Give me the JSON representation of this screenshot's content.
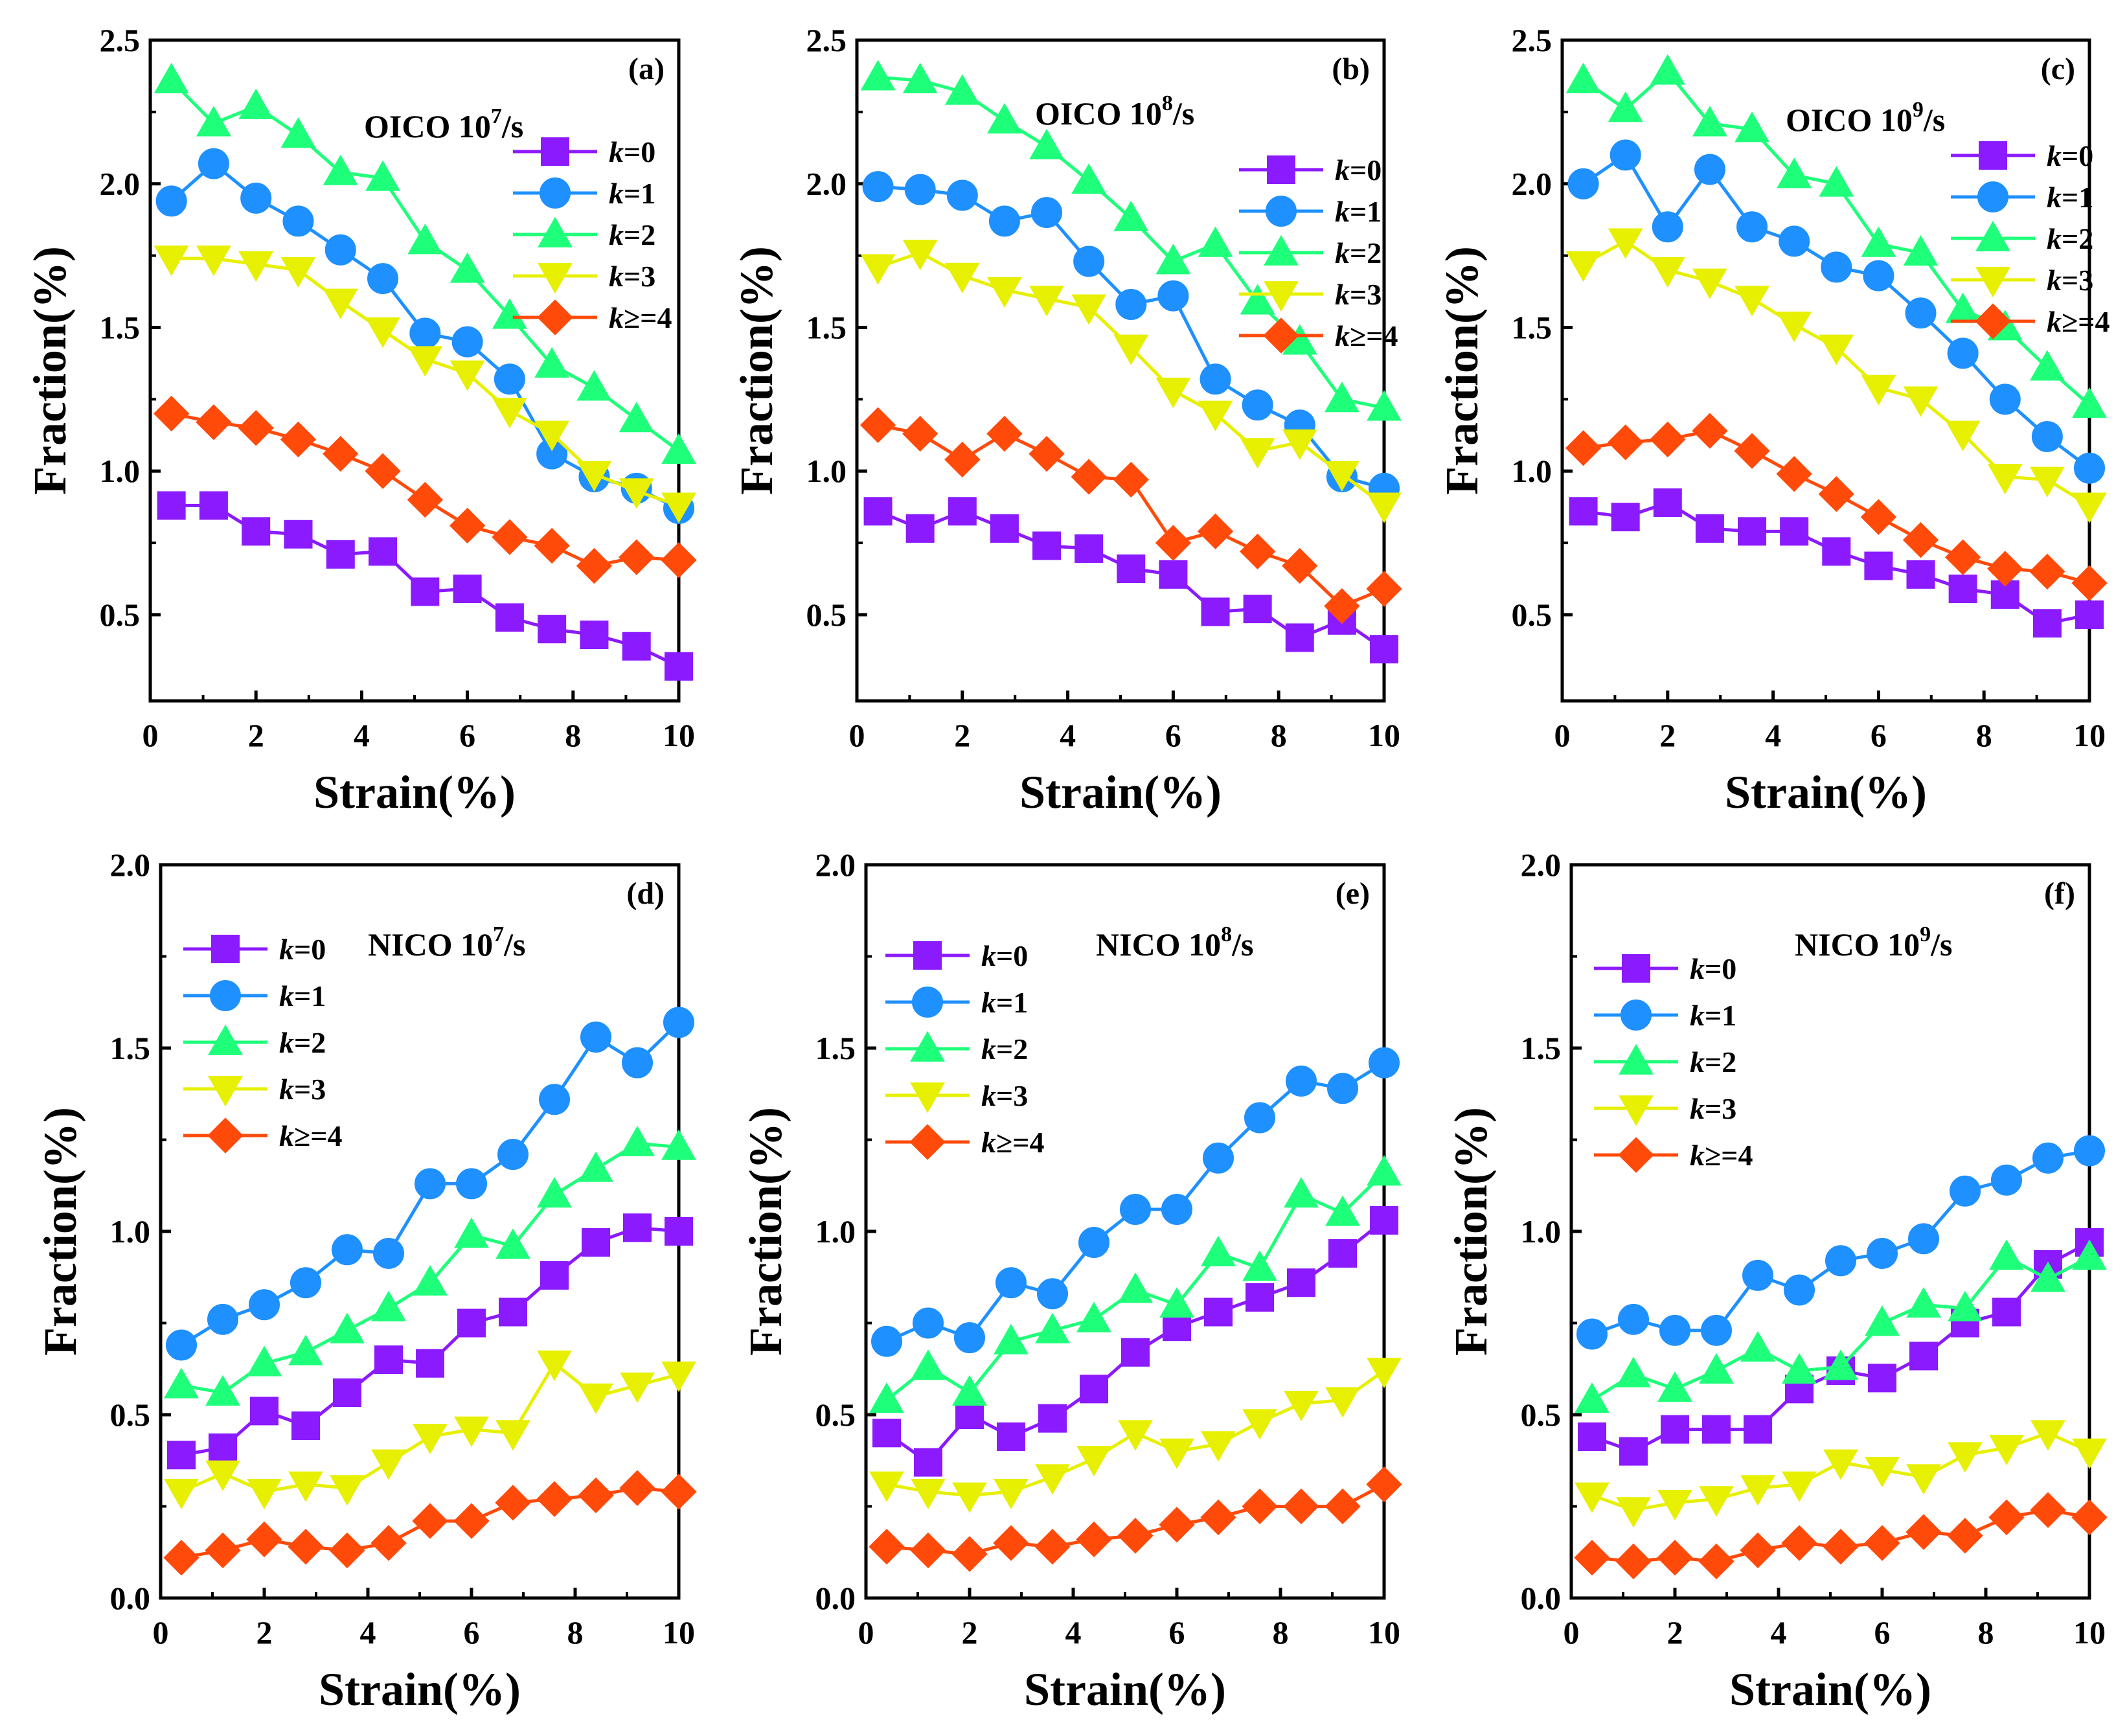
{
  "colors": {
    "k0": "#8B1AFF",
    "k1": "#1E90FF",
    "k2": "#1EFF7A",
    "k3": "#E6F000",
    "k4": "#FF4A0A"
  },
  "legend_labels": [
    {
      "k": "k",
      "rest": "=0",
      "series": "k0"
    },
    {
      "k": "k",
      "rest": "=1",
      "series": "k1"
    },
    {
      "k": "k",
      "rest": "=2",
      "series": "k2"
    },
    {
      "k": "k",
      "rest": "=3",
      "series": "k3"
    },
    {
      "k": "k",
      "rest": "≥=4",
      "series": "k4"
    }
  ],
  "chart_data": [
    {
      "type": "line",
      "panel_label": "(a)",
      "title": "OICO",
      "rate_base": "10",
      "rate_exp": "7",
      "rate_unit": "/s",
      "xlabel": "Strain(%)",
      "ylabel": "Fraction(%)",
      "xlim": [
        0,
        10
      ],
      "ylim": [
        0.2,
        2.5
      ],
      "xticks": [
        0,
        2,
        4,
        6,
        8,
        10
      ],
      "yticks": [
        0.5,
        1.0,
        1.5,
        2.0,
        2.5
      ],
      "ytick_labels": [
        "0.5",
        "1.0",
        "1.5",
        "2.0",
        "2.5"
      ],
      "x": [
        0.4,
        1.2,
        2.0,
        2.8,
        3.6,
        4.4,
        5.2,
        6.0,
        6.8,
        7.6,
        8.4,
        9.2,
        10.0
      ],
      "series": [
        {
          "name": "k=0",
          "marker": "square",
          "values": [
            0.88,
            0.88,
            0.79,
            0.78,
            0.71,
            0.72,
            0.58,
            0.59,
            0.49,
            0.45,
            0.43,
            0.39,
            0.32
          ]
        },
        {
          "name": "k=1",
          "marker": "circle",
          "values": [
            1.94,
            2.07,
            1.95,
            1.87,
            1.77,
            1.67,
            1.48,
            1.45,
            1.32,
            1.06,
            0.98,
            0.94,
            0.87
          ]
        },
        {
          "name": "k=2",
          "marker": "triangle-up",
          "values": [
            2.36,
            2.21,
            2.27,
            2.17,
            2.04,
            2.02,
            1.8,
            1.7,
            1.54,
            1.37,
            1.29,
            1.18,
            1.07
          ]
        },
        {
          "name": "k=3",
          "marker": "triangle-down",
          "values": [
            1.74,
            1.74,
            1.72,
            1.7,
            1.59,
            1.49,
            1.39,
            1.34,
            1.21,
            1.13,
            0.99,
            0.93,
            0.88
          ]
        },
        {
          "name": "k≥=4",
          "marker": "diamond",
          "values": [
            1.2,
            1.17,
            1.15,
            1.11,
            1.06,
            1.0,
            0.9,
            0.81,
            0.77,
            0.74,
            0.67,
            0.7,
            0.69
          ]
        }
      ]
    },
    {
      "type": "line",
      "panel_label": "(b)",
      "title": "OICO",
      "rate_base": "10",
      "rate_exp": "8",
      "rate_unit": "/s",
      "xlabel": "Strain(%)",
      "ylabel": "Fraction(%)",
      "xlim": [
        0,
        10
      ],
      "ylim": [
        0.2,
        2.5
      ],
      "xticks": [
        0,
        2,
        4,
        6,
        8,
        10
      ],
      "yticks": [
        0.5,
        1.0,
        1.5,
        2.0,
        2.5
      ],
      "ytick_labels": [
        "0.5",
        "1.0",
        "1.5",
        "2.0",
        "2.5"
      ],
      "x": [
        0.4,
        1.2,
        2.0,
        2.8,
        3.6,
        4.4,
        5.2,
        6.0,
        6.8,
        7.6,
        8.4,
        9.2,
        10.0
      ],
      "series": [
        {
          "name": "k=0",
          "marker": "square",
          "values": [
            0.86,
            0.8,
            0.86,
            0.8,
            0.74,
            0.73,
            0.66,
            0.64,
            0.51,
            0.52,
            0.42,
            0.48,
            0.38
          ]
        },
        {
          "name": "k=1",
          "marker": "circle",
          "values": [
            1.99,
            1.98,
            1.96,
            1.87,
            1.9,
            1.73,
            1.58,
            1.61,
            1.32,
            1.23,
            1.16,
            0.98,
            0.94
          ]
        },
        {
          "name": "k=2",
          "marker": "triangle-up",
          "values": [
            2.37,
            2.36,
            2.32,
            2.22,
            2.13,
            2.01,
            1.88,
            1.73,
            1.79,
            1.59,
            1.45,
            1.25,
            1.22
          ]
        },
        {
          "name": "k=3",
          "marker": "triangle-down",
          "values": [
            1.71,
            1.76,
            1.68,
            1.63,
            1.6,
            1.57,
            1.43,
            1.28,
            1.2,
            1.07,
            1.1,
            0.99,
            0.88
          ]
        },
        {
          "name": "k≥=4",
          "marker": "diamond",
          "values": [
            1.16,
            1.13,
            1.04,
            1.13,
            1.06,
            0.98,
            0.97,
            0.75,
            0.79,
            0.72,
            0.67,
            0.53,
            0.59
          ]
        }
      ]
    },
    {
      "type": "line",
      "panel_label": "(c)",
      "title": "OICO",
      "rate_base": "10",
      "rate_exp": "9",
      "rate_unit": "/s",
      "xlabel": "Strain(%)",
      "ylabel": "Fraction(%)",
      "xlim": [
        0,
        10
      ],
      "ylim": [
        0.2,
        2.5
      ],
      "xticks": [
        0,
        2,
        4,
        6,
        8,
        10
      ],
      "yticks": [
        0.5,
        1.0,
        1.5,
        2.0,
        2.5
      ],
      "ytick_labels": [
        "0.5",
        "1.0",
        "1.5",
        "2.0",
        "2.5"
      ],
      "x": [
        0.4,
        1.2,
        2.0,
        2.8,
        3.6,
        4.4,
        5.2,
        6.0,
        6.8,
        7.6,
        8.4,
        9.2,
        10.0
      ],
      "series": [
        {
          "name": "k=0",
          "marker": "square",
          "values": [
            0.86,
            0.84,
            0.89,
            0.8,
            0.79,
            0.79,
            0.72,
            0.67,
            0.64,
            0.59,
            0.57,
            0.47,
            0.5
          ]
        },
        {
          "name": "k=1",
          "marker": "circle",
          "values": [
            2.0,
            2.1,
            1.85,
            2.05,
            1.85,
            1.8,
            1.71,
            1.68,
            1.55,
            1.41,
            1.25,
            1.12,
            1.01
          ]
        },
        {
          "name": "k=2",
          "marker": "triangle-up",
          "values": [
            2.36,
            2.26,
            2.39,
            2.21,
            2.19,
            2.03,
            2.0,
            1.79,
            1.76,
            1.56,
            1.5,
            1.36,
            1.23
          ]
        },
        {
          "name": "k=3",
          "marker": "triangle-down",
          "values": [
            1.72,
            1.8,
            1.7,
            1.66,
            1.6,
            1.51,
            1.43,
            1.29,
            1.25,
            1.13,
            0.98,
            0.97,
            0.88
          ]
        },
        {
          "name": "k≥=4",
          "marker": "diamond",
          "values": [
            1.08,
            1.1,
            1.11,
            1.14,
            1.07,
            0.99,
            0.92,
            0.84,
            0.76,
            0.7,
            0.66,
            0.65,
            0.61
          ]
        }
      ]
    },
    {
      "type": "line",
      "panel_label": "(d)",
      "title": "NICO",
      "rate_base": "10",
      "rate_exp": "7",
      "rate_unit": "/s",
      "xlabel": "Strain(%)",
      "ylabel": "Fraction(%)",
      "xlim": [
        0,
        10
      ],
      "ylim": [
        0,
        2.0
      ],
      "xticks": [
        0,
        2,
        4,
        6,
        8,
        10
      ],
      "yticks": [
        0,
        0.5,
        1.0,
        1.5,
        2.0
      ],
      "ytick_labels": [
        "0.0",
        "0.5",
        "1.0",
        "1.5",
        "2.0"
      ],
      "x": [
        0.4,
        1.2,
        2.0,
        2.8,
        3.6,
        4.4,
        5.2,
        6.0,
        6.8,
        7.6,
        8.4,
        9.2,
        10.0
      ],
      "series": [
        {
          "name": "k=0",
          "marker": "square",
          "values": [
            0.39,
            0.41,
            0.51,
            0.47,
            0.56,
            0.65,
            0.64,
            0.75,
            0.78,
            0.88,
            0.97,
            1.01,
            1.0
          ]
        },
        {
          "name": "k=1",
          "marker": "circle",
          "values": [
            0.69,
            0.76,
            0.8,
            0.86,
            0.95,
            0.94,
            1.13,
            1.13,
            1.21,
            1.36,
            1.53,
            1.46,
            1.57
          ]
        },
        {
          "name": "k=2",
          "marker": "triangle-up",
          "values": [
            0.58,
            0.56,
            0.64,
            0.67,
            0.73,
            0.79,
            0.86,
            0.99,
            0.96,
            1.1,
            1.17,
            1.24,
            1.23
          ]
        },
        {
          "name": "k=3",
          "marker": "triangle-down",
          "values": [
            0.29,
            0.34,
            0.29,
            0.31,
            0.3,
            0.37,
            0.44,
            0.46,
            0.45,
            0.64,
            0.55,
            0.58,
            0.61
          ]
        },
        {
          "name": "k≥=4",
          "marker": "diamond",
          "values": [
            0.11,
            0.13,
            0.16,
            0.14,
            0.13,
            0.15,
            0.21,
            0.21,
            0.26,
            0.27,
            0.28,
            0.3,
            0.29
          ]
        }
      ]
    },
    {
      "type": "line",
      "panel_label": "(e)",
      "title": "NICO",
      "rate_base": "10",
      "rate_exp": "8",
      "rate_unit": "/s",
      "xlabel": "Strain(%)",
      "ylabel": "Fraction(%)",
      "xlim": [
        0,
        10
      ],
      "ylim": [
        0,
        2.0
      ],
      "xticks": [
        0,
        2,
        4,
        6,
        8,
        10
      ],
      "yticks": [
        0,
        0.5,
        1.0,
        1.5,
        2.0
      ],
      "ytick_labels": [
        "0.0",
        "0.5",
        "1.0",
        "1.5",
        "2.0"
      ],
      "x": [
        0.4,
        1.2,
        2.0,
        2.8,
        3.6,
        4.4,
        5.2,
        6.0,
        6.8,
        7.6,
        8.4,
        9.2,
        10.0
      ],
      "series": [
        {
          "name": "k=0",
          "marker": "square",
          "values": [
            0.45,
            0.37,
            0.5,
            0.44,
            0.49,
            0.57,
            0.67,
            0.74,
            0.78,
            0.82,
            0.86,
            0.94,
            1.03
          ]
        },
        {
          "name": "k=1",
          "marker": "circle",
          "values": [
            0.7,
            0.75,
            0.71,
            0.86,
            0.83,
            0.97,
            1.06,
            1.06,
            1.2,
            1.31,
            1.41,
            1.39,
            1.46
          ]
        },
        {
          "name": "k=2",
          "marker": "triangle-up",
          "values": [
            0.54,
            0.63,
            0.56,
            0.7,
            0.73,
            0.76,
            0.84,
            0.8,
            0.94,
            0.9,
            1.1,
            1.05,
            1.16
          ]
        },
        {
          "name": "k=3",
          "marker": "triangle-down",
          "values": [
            0.31,
            0.29,
            0.28,
            0.29,
            0.33,
            0.38,
            0.45,
            0.4,
            0.42,
            0.48,
            0.53,
            0.54,
            0.62
          ]
        },
        {
          "name": "k≥=4",
          "marker": "diamond",
          "values": [
            0.14,
            0.13,
            0.12,
            0.15,
            0.14,
            0.16,
            0.17,
            0.2,
            0.22,
            0.25,
            0.25,
            0.25,
            0.31
          ]
        }
      ]
    },
    {
      "type": "line",
      "panel_label": "(f)",
      "title": "NICO",
      "rate_base": "10",
      "rate_exp": "9",
      "rate_unit": "/s",
      "xlabel": "Strain(%)",
      "ylabel": "Fraction(%)",
      "xlim": [
        0,
        10
      ],
      "ylim": [
        0,
        2.0
      ],
      "xticks": [
        0,
        2,
        4,
        6,
        8,
        10
      ],
      "yticks": [
        0,
        0.5,
        1.0,
        1.5,
        2.0
      ],
      "ytick_labels": [
        "0.0",
        "0.5",
        "1.0",
        "1.5",
        "2.0"
      ],
      "x": [
        0.4,
        1.2,
        2.0,
        2.8,
        3.6,
        4.4,
        5.2,
        6.0,
        6.8,
        7.6,
        8.4,
        9.2,
        10.0
      ],
      "series": [
        {
          "name": "k=0",
          "marker": "square",
          "values": [
            0.44,
            0.4,
            0.46,
            0.46,
            0.46,
            0.57,
            0.62,
            0.6,
            0.66,
            0.75,
            0.78,
            0.91,
            0.97
          ]
        },
        {
          "name": "k=1",
          "marker": "circle",
          "values": [
            0.72,
            0.76,
            0.73,
            0.73,
            0.88,
            0.84,
            0.92,
            0.94,
            0.98,
            1.11,
            1.14,
            1.2,
            1.22
          ]
        },
        {
          "name": "k=2",
          "marker": "triangle-up",
          "values": [
            0.54,
            0.61,
            0.57,
            0.62,
            0.68,
            0.62,
            0.63,
            0.75,
            0.8,
            0.79,
            0.93,
            0.87,
            0.93
          ]
        },
        {
          "name": "k=3",
          "marker": "triangle-down",
          "values": [
            0.28,
            0.24,
            0.26,
            0.27,
            0.3,
            0.31,
            0.37,
            0.35,
            0.33,
            0.39,
            0.41,
            0.45,
            0.4
          ]
        },
        {
          "name": "k≥=4",
          "marker": "diamond",
          "values": [
            0.11,
            0.1,
            0.11,
            0.1,
            0.13,
            0.15,
            0.14,
            0.15,
            0.18,
            0.17,
            0.22,
            0.24,
            0.22
          ]
        }
      ]
    }
  ]
}
